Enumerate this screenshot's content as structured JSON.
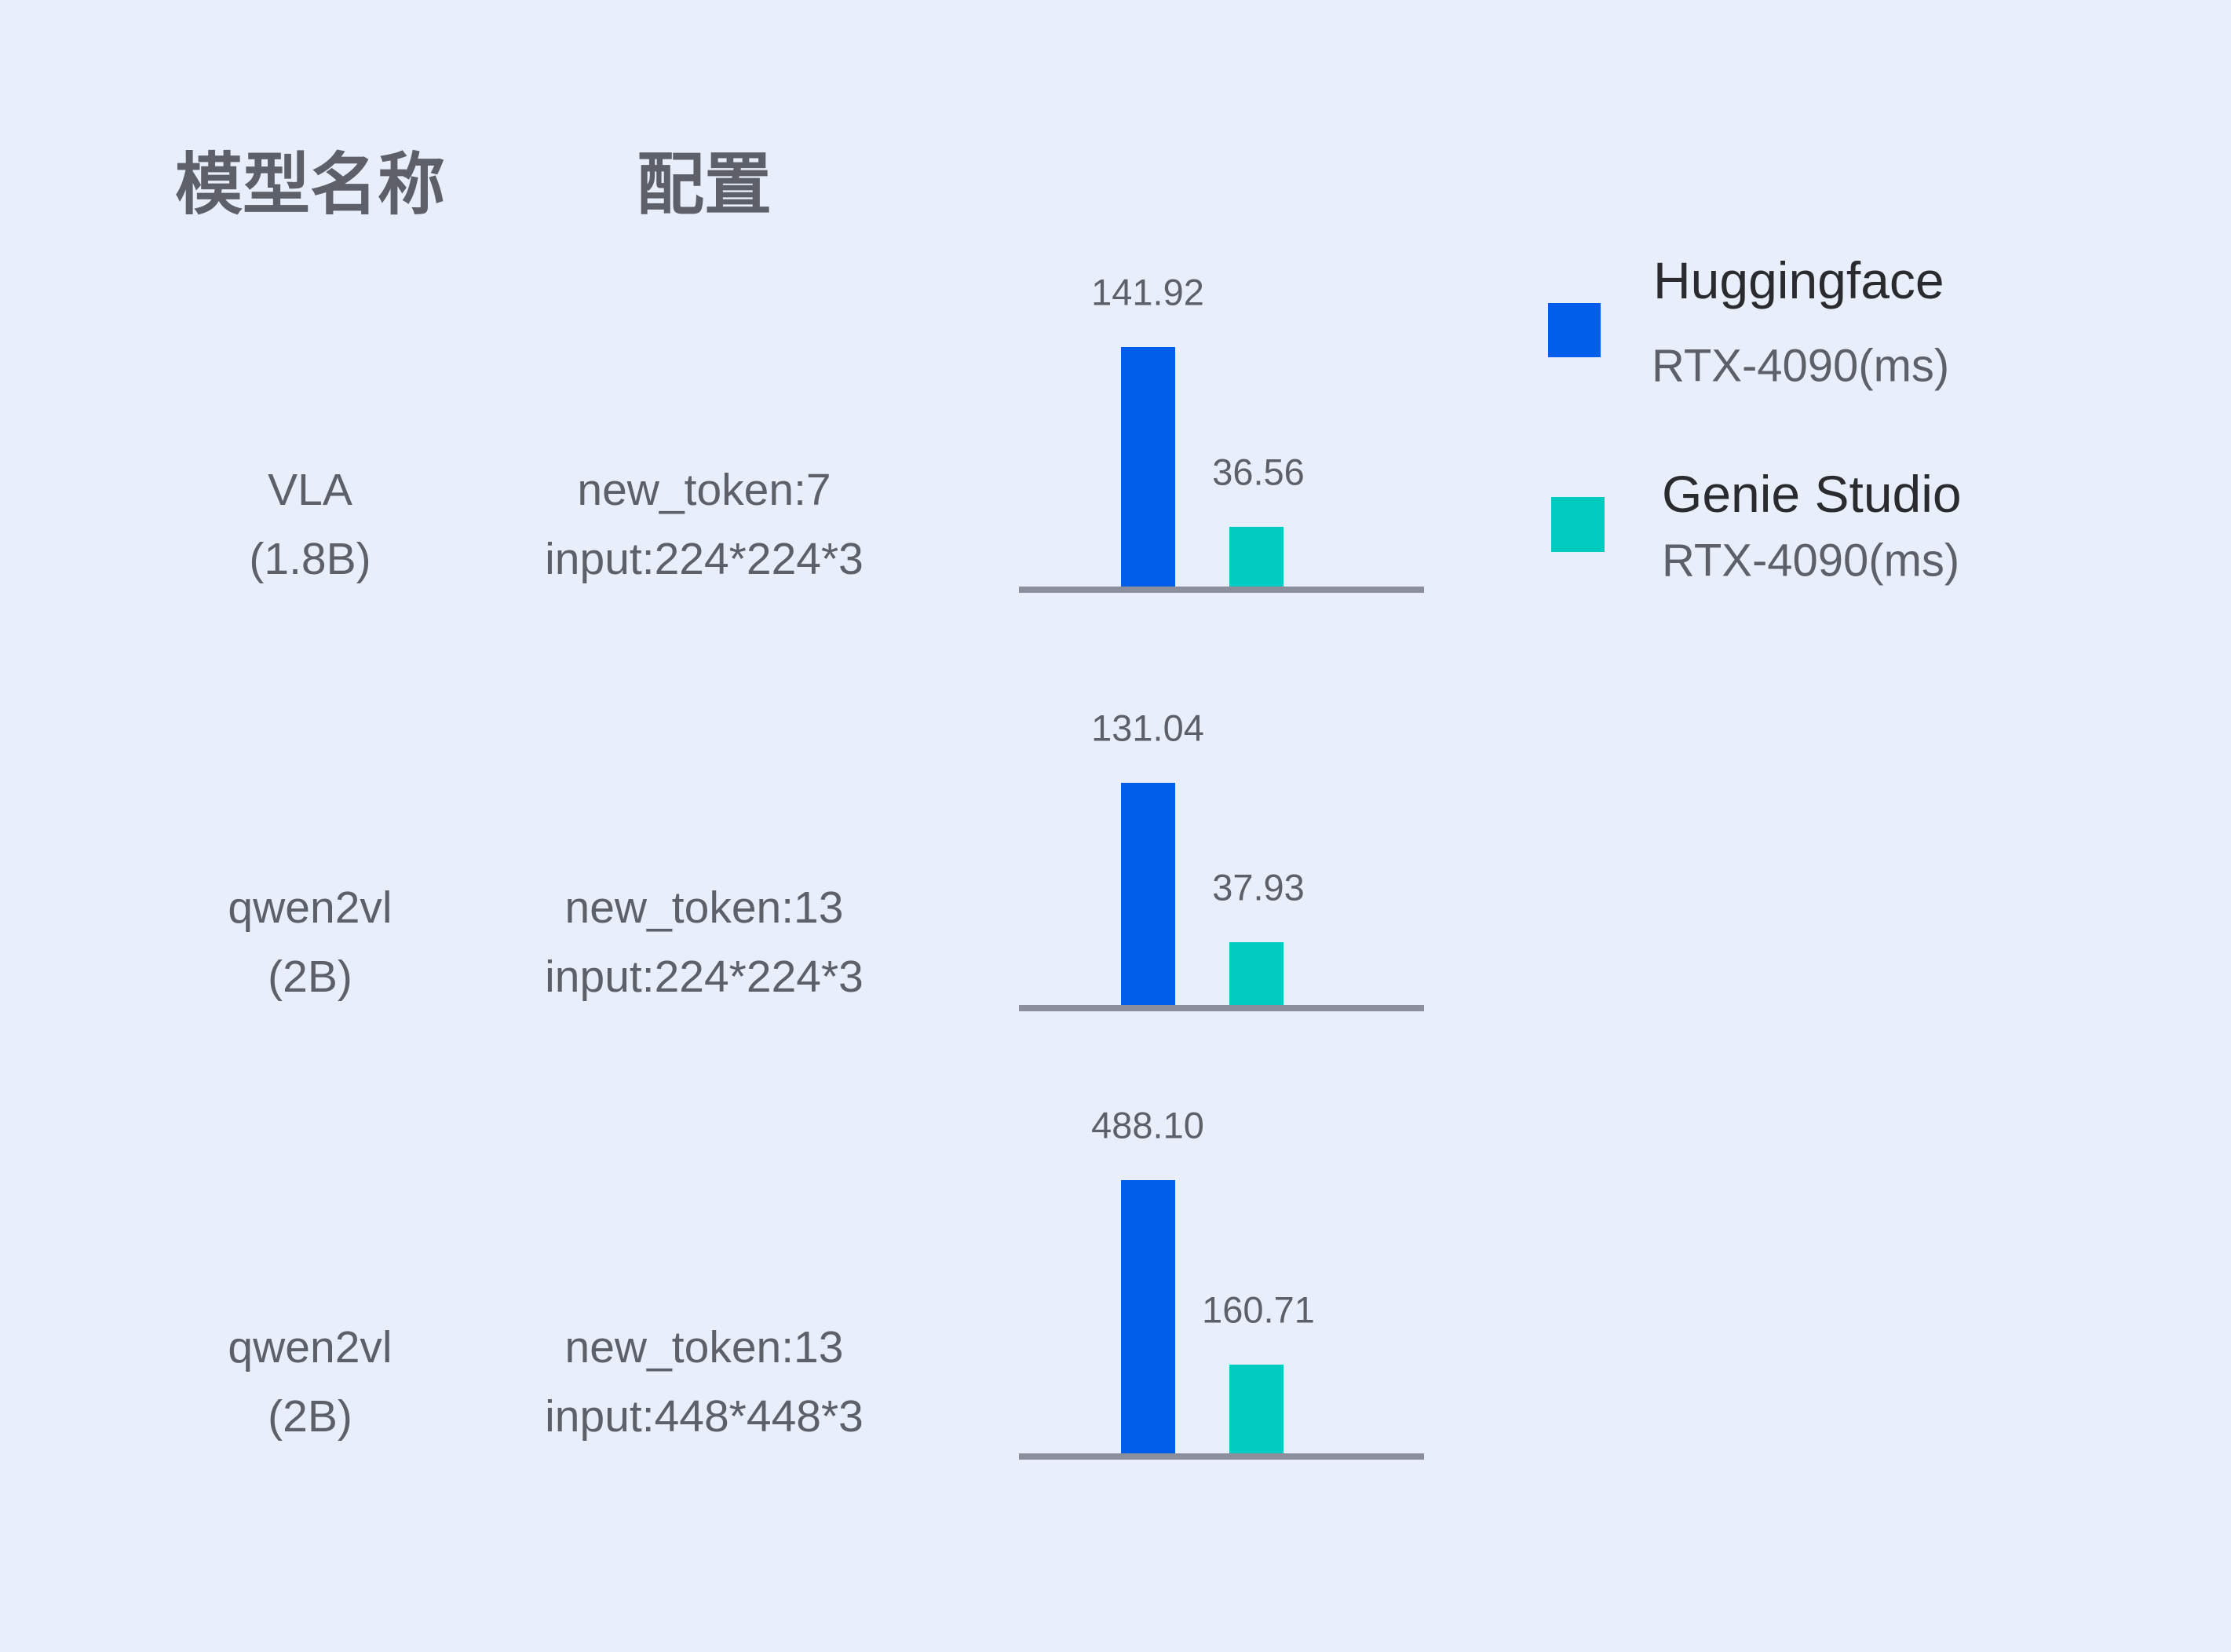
{
  "headers": {
    "model": "模型名称",
    "config": "配置"
  },
  "legend": [
    {
      "name": "Huggingface",
      "sub": "RTX-4090(ms)",
      "color": "#005eeb"
    },
    {
      "name": "Genie Studio",
      "sub": "RTX-4090(ms)",
      "color": "#00ccc2"
    }
  ],
  "rows": [
    {
      "model": [
        "VLA",
        "(1.8B)"
      ],
      "config": [
        "new_token:7",
        "input:224*224*3"
      ],
      "values": [
        "141.92",
        "36.56"
      ]
    },
    {
      "model": [
        "qwen2vl",
        "(2B)"
      ],
      "config": [
        "new_token:13",
        "input:224*224*3"
      ],
      "values": [
        "131.04",
        "37.93"
      ]
    },
    {
      "model": [
        "qwen2vl",
        "(2B)"
      ],
      "config": [
        "new_token:13",
        "input:448*448*3"
      ],
      "values": [
        "488.10",
        "160.71"
      ]
    }
  ],
  "chart_data": {
    "type": "bar",
    "categories": [
      "VLA (1.8B) new_token:7 input:224*224*3",
      "qwen2vl (2B) new_token:13 input:224*224*3",
      "qwen2vl (2B) new_token:13 input:448*448*3"
    ],
    "series": [
      {
        "name": "Huggingface RTX-4090(ms)",
        "values": [
          141.92,
          131.04,
          488.1
        ],
        "color": "#005eeb"
      },
      {
        "name": "Genie Studio RTX-4090(ms)",
        "values": [
          36.56,
          37.93,
          160.71
        ],
        "color": "#00ccc2"
      }
    ],
    "axis_color": "#8a8f9b",
    "grid": false,
    "legend_position": "top-right",
    "independent_scale_per_category": true
  }
}
